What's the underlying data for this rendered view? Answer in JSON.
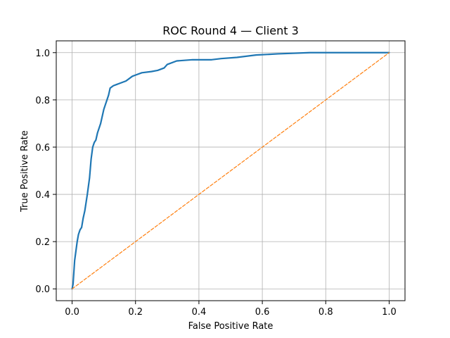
{
  "chart_data": {
    "type": "line",
    "title": "ROC Round 4 — Client 3",
    "xlabel": "False Positive Rate",
    "ylabel": "True Positive Rate",
    "xlim": [
      -0.05,
      1.05
    ],
    "ylim": [
      -0.05,
      1.05
    ],
    "xticks": [
      "0.0",
      "0.2",
      "0.4",
      "0.6",
      "0.8",
      "1.0"
    ],
    "yticks": [
      "0.0",
      "0.2",
      "0.4",
      "0.6",
      "0.8",
      "1.0"
    ],
    "grid": true,
    "series": [
      {
        "color": "#1f77b4",
        "style": "solid",
        "x": [
          0,
          0.003,
          0.006,
          0.008,
          0.012,
          0.016,
          0.02,
          0.025,
          0.03,
          0.035,
          0.04,
          0.048,
          0.055,
          0.06,
          0.065,
          0.07,
          0.075,
          0.08,
          0.09,
          0.1,
          0.105,
          0.11,
          0.115,
          0.12,
          0.13,
          0.14,
          0.15,
          0.17,
          0.19,
          0.2,
          0.22,
          0.25,
          0.27,
          0.29,
          0.3,
          0.33,
          0.38,
          0.44,
          0.47,
          0.52,
          0.58,
          0.65,
          0.75,
          1.0
        ],
        "y": [
          0,
          0.02,
          0.08,
          0.12,
          0.16,
          0.2,
          0.23,
          0.25,
          0.26,
          0.3,
          0.33,
          0.4,
          0.47,
          0.55,
          0.6,
          0.62,
          0.63,
          0.66,
          0.7,
          0.76,
          0.78,
          0.8,
          0.82,
          0.85,
          0.86,
          0.865,
          0.87,
          0.88,
          0.9,
          0.905,
          0.915,
          0.92,
          0.925,
          0.935,
          0.95,
          0.965,
          0.97,
          0.97,
          0.975,
          0.98,
          0.99,
          0.995,
          1.0,
          1.0
        ]
      },
      {
        "color": "#ff7f0e",
        "style": "dashed",
        "x": [
          0,
          1
        ],
        "y": [
          0,
          1
        ]
      }
    ]
  }
}
